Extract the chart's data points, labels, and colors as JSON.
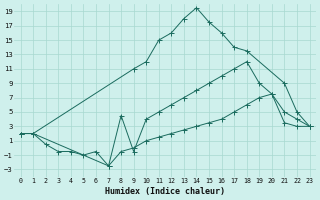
{
  "xlabel": "Humidex (Indice chaleur)",
  "xlim": [
    -0.5,
    23.5
  ],
  "ylim": [
    -4,
    20
  ],
  "xticks": [
    0,
    1,
    2,
    3,
    4,
    5,
    6,
    7,
    8,
    9,
    10,
    11,
    12,
    13,
    14,
    15,
    16,
    17,
    18,
    19,
    20,
    21,
    22,
    23
  ],
  "yticks": [
    -3,
    -1,
    1,
    3,
    5,
    7,
    9,
    11,
    13,
    15,
    17,
    19
  ],
  "bg_color": "#cff0ec",
  "grid_color": "#a8d8d0",
  "line_color": "#1a6b5e",
  "line1_x": [
    0,
    1,
    9,
    10,
    11,
    12,
    13,
    14,
    15,
    16,
    17,
    18,
    21,
    22,
    23
  ],
  "line1_y": [
    2,
    2,
    11,
    12,
    15,
    16,
    18,
    19.5,
    17.5,
    16,
    14,
    13.5,
    9,
    5,
    3
  ],
  "line2_x": [
    0,
    1,
    7,
    8,
    9,
    10,
    11,
    12,
    13,
    14,
    15,
    16,
    17,
    18,
    19,
    20,
    21,
    22,
    23
  ],
  "line2_y": [
    2,
    2,
    -2.5,
    4.5,
    -0.5,
    4,
    5,
    6,
    7,
    8,
    9,
    10,
    11,
    12,
    9,
    7.5,
    5,
    4,
    3
  ],
  "line3_x": [
    0,
    1,
    2,
    3,
    4,
    5,
    6,
    7,
    8,
    9,
    10,
    11,
    12,
    13,
    14,
    15,
    16,
    17,
    18,
    19,
    20,
    21,
    22,
    23
  ],
  "line3_y": [
    2,
    2,
    0.5,
    -0.5,
    -0.5,
    -1,
    -0.5,
    -2.5,
    -0.5,
    0,
    1,
    1.5,
    2,
    2.5,
    3,
    3.5,
    4,
    5,
    6,
    7,
    7.5,
    3.5,
    3,
    3
  ]
}
